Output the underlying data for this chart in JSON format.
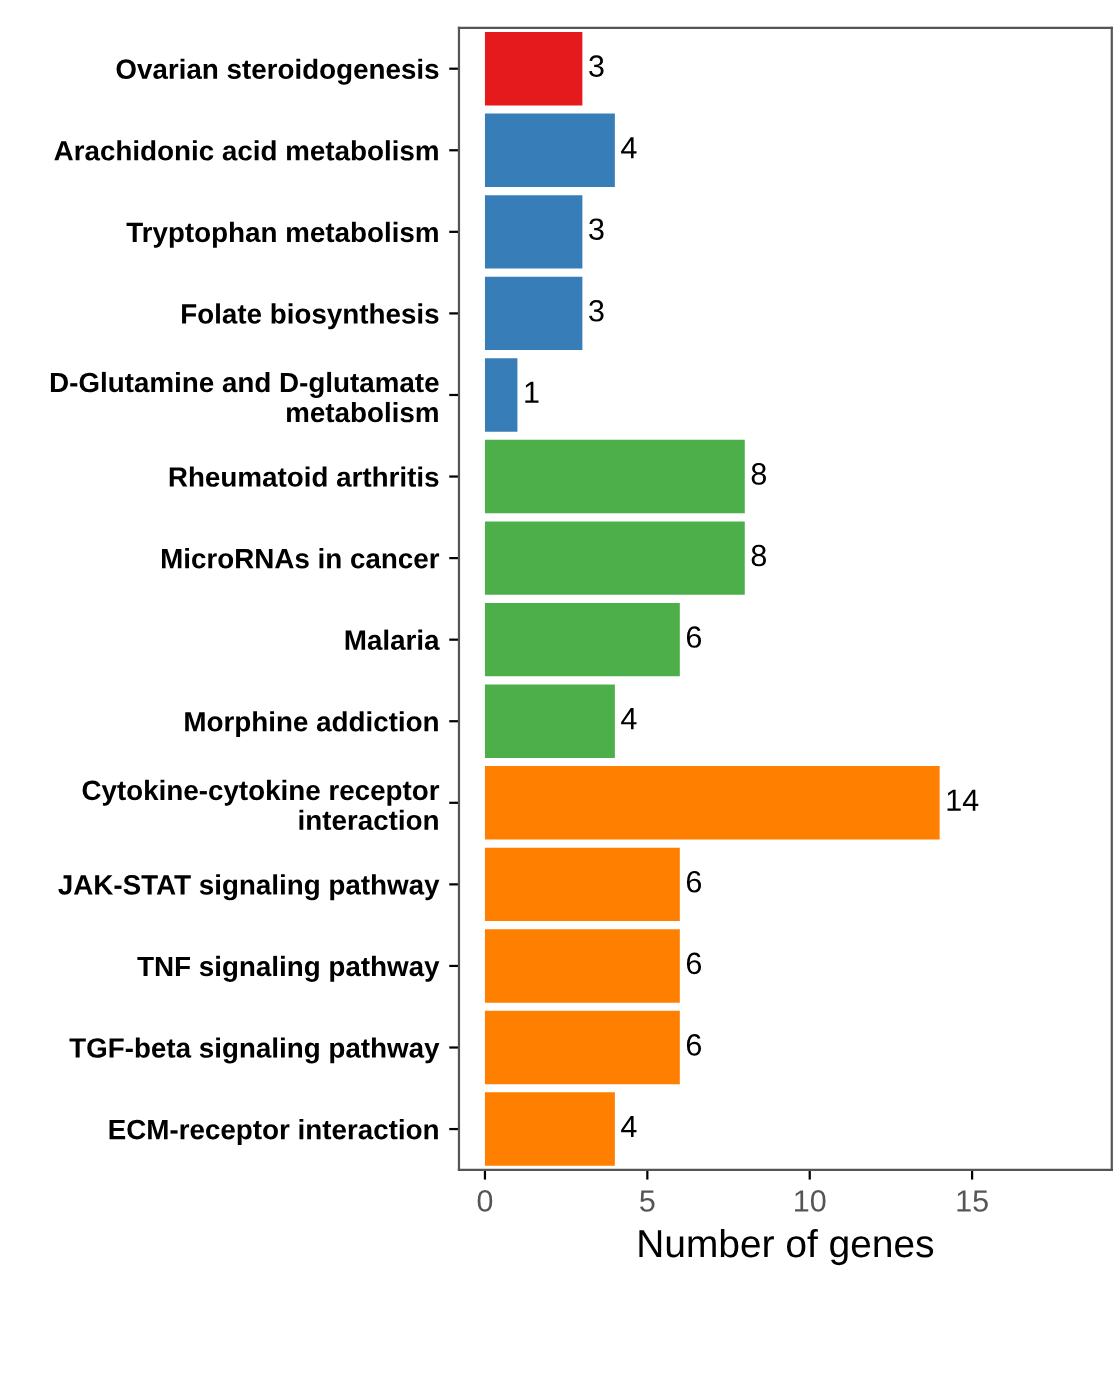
{
  "chart_data": {
    "type": "bar",
    "orientation": "horizontal",
    "xlabel": "Number of genes",
    "categories": [
      "Ovarian steroidogenesis",
      "Arachidonic acid metabolism",
      "Tryptophan metabolism",
      "Folate biosynthesis",
      "D-Glutamine and D-glutamate\nmetabolism",
      "Rheumatoid arthritis",
      "MicroRNAs in cancer",
      "Malaria",
      "Morphine addiction",
      "Cytokine-cytokine receptor\ninteraction",
      "JAK-STAT signaling pathway",
      "TNF signaling pathway",
      "TGF-beta signaling pathway",
      "ECM-receptor interaction"
    ],
    "values": [
      3,
      4,
      3,
      3,
      1,
      8,
      8,
      6,
      4,
      14,
      6,
      6,
      6,
      4
    ],
    "colors": [
      "#e41a1c",
      "#377eb8",
      "#377eb8",
      "#377eb8",
      "#377eb8",
      "#4daf4a",
      "#4daf4a",
      "#4daf4a",
      "#4daf4a",
      "#ff7f00",
      "#ff7f00",
      "#ff7f00",
      "#ff7f00",
      "#ff7f00"
    ],
    "xlim": [
      -0.8,
      19.3
    ],
    "xticks": [
      0,
      5,
      10,
      15
    ],
    "data_labels": true,
    "grid": false,
    "legend": false
  }
}
